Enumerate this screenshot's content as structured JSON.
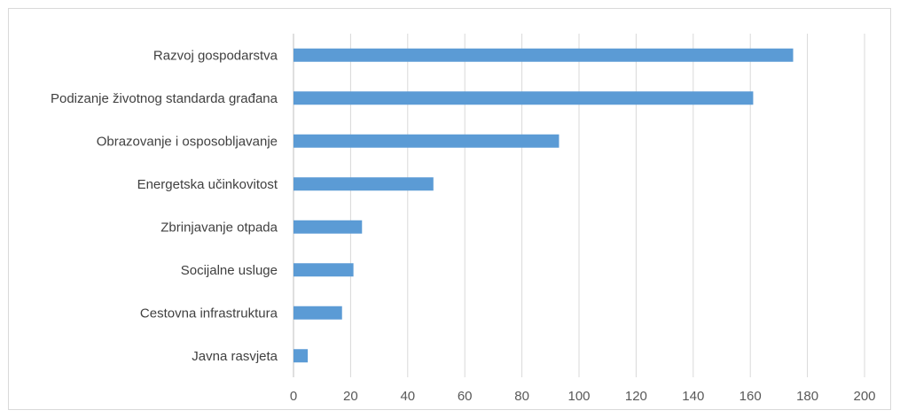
{
  "chart_data": {
    "type": "bar",
    "orientation": "horizontal",
    "categories": [
      "Razvoj gospodarstva",
      "Podizanje životnog standarda građana",
      "Obrazovanje i osposobljavanje",
      "Energetska učinkovitost",
      "Zbrinjavanje otpada",
      "Socijalne usluge",
      "Cestovna infrastruktura",
      "Javna rasvjeta"
    ],
    "values": [
      175,
      161,
      93,
      49,
      24,
      21,
      17,
      5
    ],
    "xlim": [
      0,
      200
    ],
    "xticks": [
      "0",
      "20",
      "40",
      "60",
      "80",
      "100",
      "120",
      "140",
      "160",
      "180",
      "200"
    ],
    "grid": true,
    "legend": "none",
    "bar_color": "#5b9bd5",
    "grid_color": "#d9d9d9"
  }
}
